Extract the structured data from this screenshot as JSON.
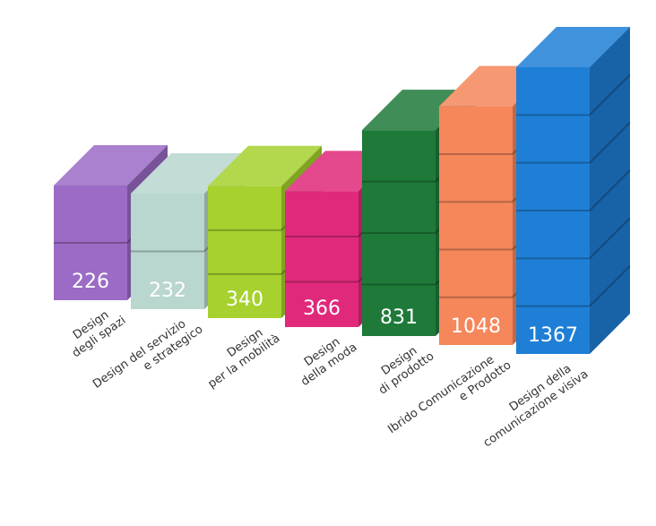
{
  "chart_data": {
    "type": "bar",
    "categories": [
      [
        "Design",
        "degli spazi"
      ],
      [
        "Design del servizio",
        "e strategico"
      ],
      [
        "Design",
        "per la mobilità"
      ],
      [
        "Design",
        "della moda"
      ],
      [
        "Design",
        "di prodotto"
      ],
      [
        "Ibrido Comunicazione",
        "e Prodotto"
      ],
      [
        "Design della",
        "comunicazione visiva"
      ]
    ],
    "values": [
      226,
      232,
      340,
      366,
      831,
      1048,
      1367
    ],
    "colors": [
      "#9b6bc6",
      "#b9d6cf",
      "#a6d12e",
      "#e0297a",
      "#1f7a3a",
      "#f5875a",
      "#1f7fd6"
    ]
  }
}
